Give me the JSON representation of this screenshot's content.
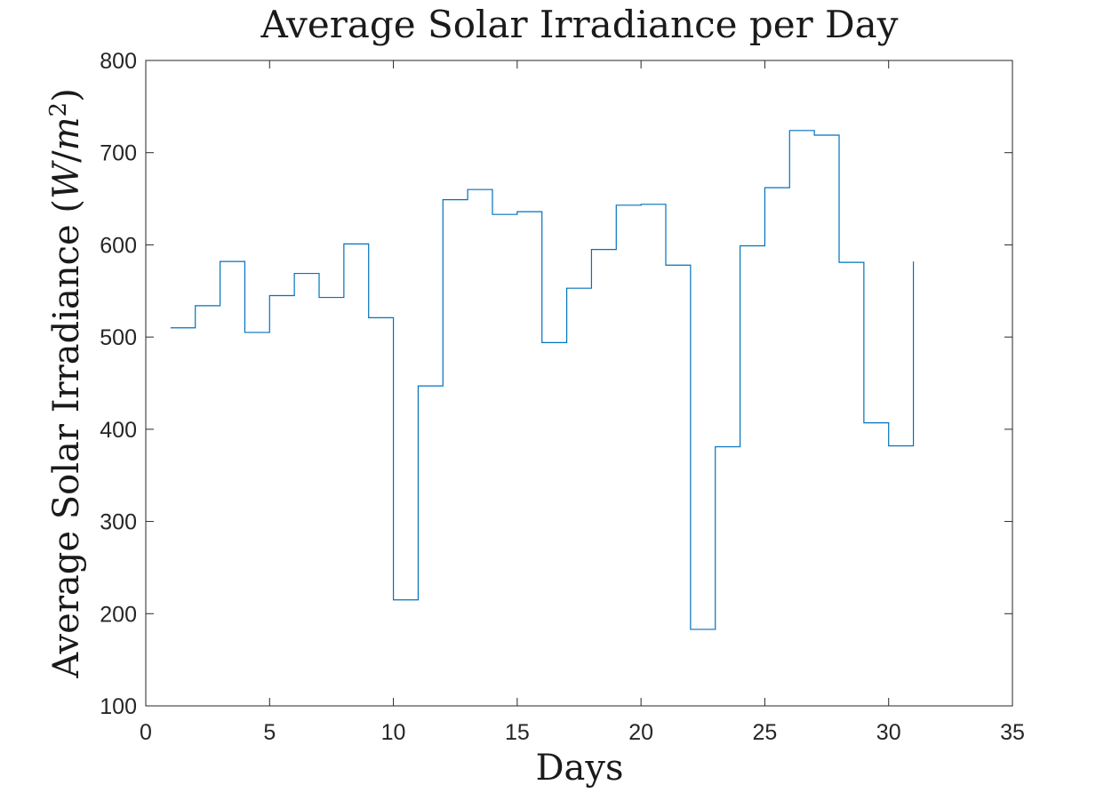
{
  "chart_data": {
    "type": "line",
    "style": "stairs",
    "title": "Average Solar Irradiance per Day",
    "xlabel": "Days",
    "ylabel": "Average Solar Irradiance (W/m²)",
    "ylabel_parts": {
      "prefix": "Average Solar Irradiance (",
      "var_w": "W",
      "slash": "/",
      "var_m": "m",
      "exponent": "2",
      "suffix": ")"
    },
    "xlim": [
      0,
      35
    ],
    "ylim": [
      100,
      800
    ],
    "xticks": [
      0,
      5,
      10,
      15,
      20,
      25,
      30,
      35
    ],
    "yticks": [
      100,
      200,
      300,
      400,
      500,
      600,
      700,
      800
    ],
    "grid": false,
    "line_color": "#0072BD",
    "series": [
      {
        "x": [
          1,
          2,
          3,
          4,
          5,
          6,
          7,
          8,
          9,
          10,
          11,
          12,
          13,
          14,
          15,
          16,
          17,
          18,
          19,
          20,
          21,
          22,
          23,
          24,
          25,
          26,
          27,
          28,
          29,
          30,
          31
        ],
        "values": [
          510,
          534,
          582,
          505,
          545,
          569,
          543,
          601,
          521,
          215,
          447,
          649,
          660,
          633,
          636,
          494,
          553,
          595,
          643,
          644,
          578,
          183,
          381,
          599,
          662,
          724,
          719,
          581,
          407,
          382,
          582
        ]
      }
    ]
  }
}
